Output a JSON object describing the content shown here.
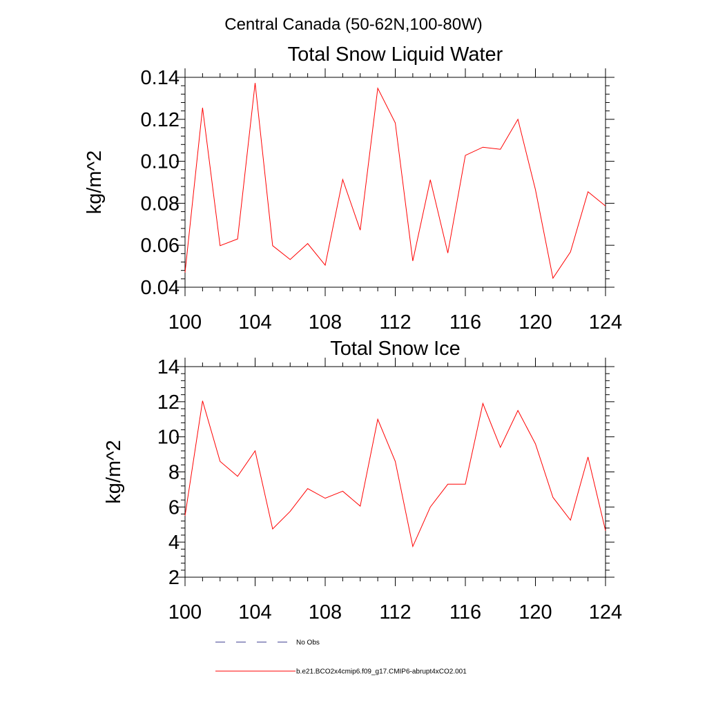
{
  "figure": {
    "title": "Central Canada (50-62N,100-80W)"
  },
  "chart_data": [
    {
      "type": "line",
      "title": "Total Snow Liquid Water",
      "xlabel": "",
      "ylabel": "kg/m^2",
      "xlim": [
        100,
        124
      ],
      "ylim": [
        0.04,
        0.14
      ],
      "xticks": [
        "100",
        "104",
        "108",
        "112",
        "116",
        "120",
        "124"
      ],
      "yticks": [
        "0.04",
        "0.06",
        "0.08",
        "0.10",
        "0.12",
        "0.14"
      ],
      "x": [
        100,
        101,
        102,
        103,
        104,
        105,
        106,
        107,
        108,
        109,
        110,
        111,
        112,
        113,
        114,
        115,
        116,
        117,
        118,
        119,
        120,
        121,
        122,
        123,
        124
      ],
      "series": [
        {
          "name": "b.e21.BCO2x4cmip6.f09_g17.CMIP6-abrupt4xCO2.001",
          "color": "#ff0000",
          "values": [
            0.047,
            0.1255,
            0.0598,
            0.063,
            0.1373,
            0.0598,
            0.0532,
            0.0608,
            0.0505,
            0.0913,
            0.0672,
            0.1348,
            0.1183,
            0.0525,
            0.0912,
            0.0563,
            0.1028,
            0.1067,
            0.1057,
            0.12,
            0.0865,
            0.0443,
            0.0568,
            0.0855,
            0.0787
          ]
        }
      ]
    },
    {
      "type": "line",
      "title": "Total Snow Ice",
      "xlabel": "",
      "ylabel": "kg/m^2",
      "xlim": [
        100,
        124
      ],
      "ylim": [
        2,
        14
      ],
      "xticks": [
        "100",
        "104",
        "108",
        "112",
        "116",
        "120",
        "124"
      ],
      "yticks": [
        "2",
        "4",
        "6",
        "8",
        "10",
        "12",
        "14"
      ],
      "x": [
        100,
        101,
        102,
        103,
        104,
        105,
        106,
        107,
        108,
        109,
        110,
        111,
        112,
        113,
        114,
        115,
        116,
        117,
        118,
        119,
        120,
        121,
        122,
        123,
        124
      ],
      "series": [
        {
          "name": "b.e21.BCO2x4cmip6.f09_g17.CMIP6-abrupt4xCO2.001",
          "color": "#ff0000",
          "values": [
            5.5,
            12.05,
            8.6,
            7.75,
            9.2,
            4.75,
            5.75,
            7.05,
            6.5,
            6.9,
            6.05,
            11.0,
            8.6,
            3.75,
            6.0,
            7.3,
            7.3,
            11.9,
            9.4,
            11.5,
            9.6,
            6.55,
            5.25,
            8.85,
            4.65
          ]
        }
      ]
    }
  ],
  "legend": {
    "placement": "bottom-center",
    "entries": [
      {
        "label": "No Obs",
        "color": "#3a3a8c",
        "style": "dashed"
      },
      {
        "label": "b.e21.BCO2x4cmip6.f09_g17.CMIP6-abrupt4xCO2.001",
        "color": "#ff0000",
        "style": "solid"
      }
    ]
  }
}
